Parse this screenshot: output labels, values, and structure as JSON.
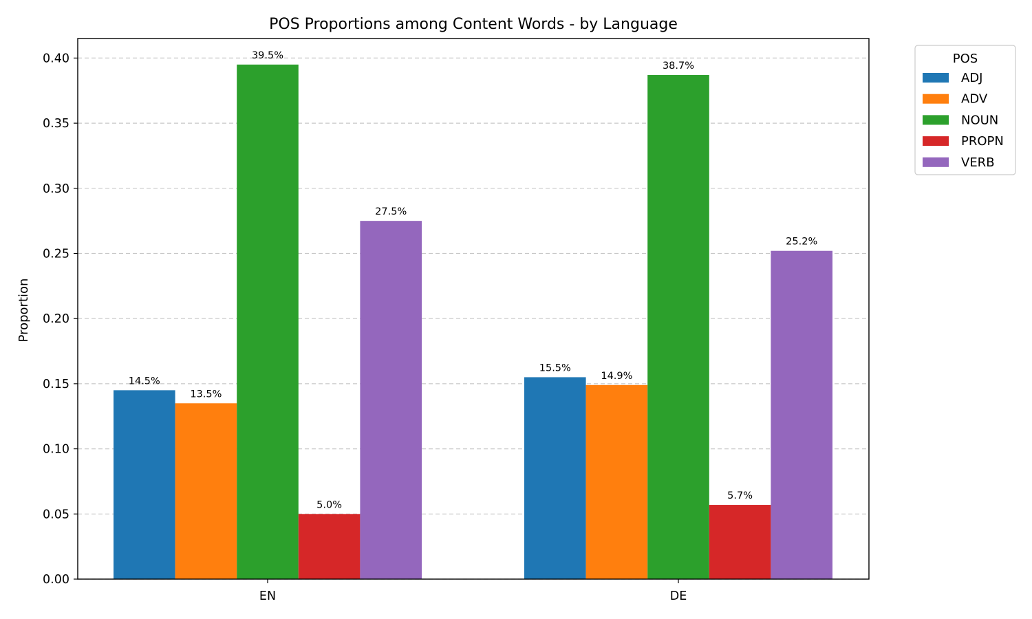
{
  "chart_data": {
    "type": "bar",
    "title": "POS Proportions among Content Words - by Language",
    "xlabel": "",
    "ylabel": "Proportion",
    "categories": [
      "EN",
      "DE"
    ],
    "ylim": [
      0,
      0.415
    ],
    "yticks": [
      0.0,
      0.05,
      0.1,
      0.15,
      0.2,
      0.25,
      0.3,
      0.35,
      0.4
    ],
    "ytick_labels": [
      "0.00",
      "0.05",
      "0.10",
      "0.15",
      "0.20",
      "0.25",
      "0.30",
      "0.35",
      "0.40"
    ],
    "grid": "y-dashed",
    "legend": {
      "title": "POS",
      "placement": "outside-top-right"
    },
    "series": [
      {
        "name": "ADJ",
        "color": "#1f77b4",
        "values": [
          0.145,
          0.155
        ],
        "labels": [
          "14.5%",
          "15.5%"
        ]
      },
      {
        "name": "ADV",
        "color": "#ff7f0e",
        "values": [
          0.135,
          0.149
        ],
        "labels": [
          "13.5%",
          "14.9%"
        ]
      },
      {
        "name": "NOUN",
        "color": "#2ca02c",
        "values": [
          0.395,
          0.387
        ],
        "labels": [
          "39.5%",
          "38.7%"
        ]
      },
      {
        "name": "PROPN",
        "color": "#d62728",
        "values": [
          0.05,
          0.057
        ],
        "labels": [
          "5.0%",
          "5.7%"
        ]
      },
      {
        "name": "VERB",
        "color": "#9467bd",
        "values": [
          0.275,
          0.252
        ],
        "labels": [
          "27.5%",
          "25.2%"
        ]
      }
    ]
  }
}
